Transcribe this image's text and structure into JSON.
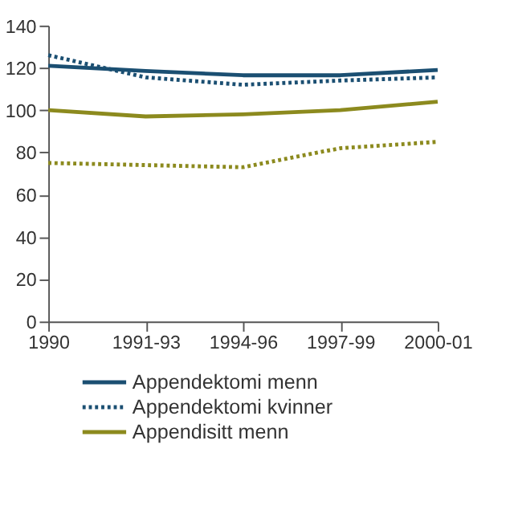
{
  "chart_data": {
    "type": "line",
    "categories": [
      "1990",
      "1991-93",
      "1994-96",
      "1997-99",
      "2000-01"
    ],
    "ylim": [
      0,
      140
    ],
    "yticks": [
      0,
      20,
      40,
      60,
      80,
      100,
      120,
      140
    ],
    "grid": false,
    "legend": "bottom",
    "marker": "none",
    "series": [
      {
        "name": "Appendektomi menn",
        "color": "#1b4f72",
        "line_style": "solid",
        "values": [
          121,
          118.5,
          116.5,
          116.5,
          119
        ]
      },
      {
        "name": "Appendektomi kvinner",
        "color": "#1b4f72",
        "line_style": "dotted",
        "values": [
          126,
          115.5,
          112,
          114,
          115.5
        ]
      },
      {
        "name": "Appendisitt menn",
        "color": "#8c8a1e",
        "line_style": "solid",
        "values": [
          100,
          97,
          98,
          100,
          104
        ]
      },
      {
        "color": "#8c8a1e",
        "line_style": "dotted",
        "values": [
          75,
          74,
          73,
          82,
          85
        ]
      }
    ]
  }
}
